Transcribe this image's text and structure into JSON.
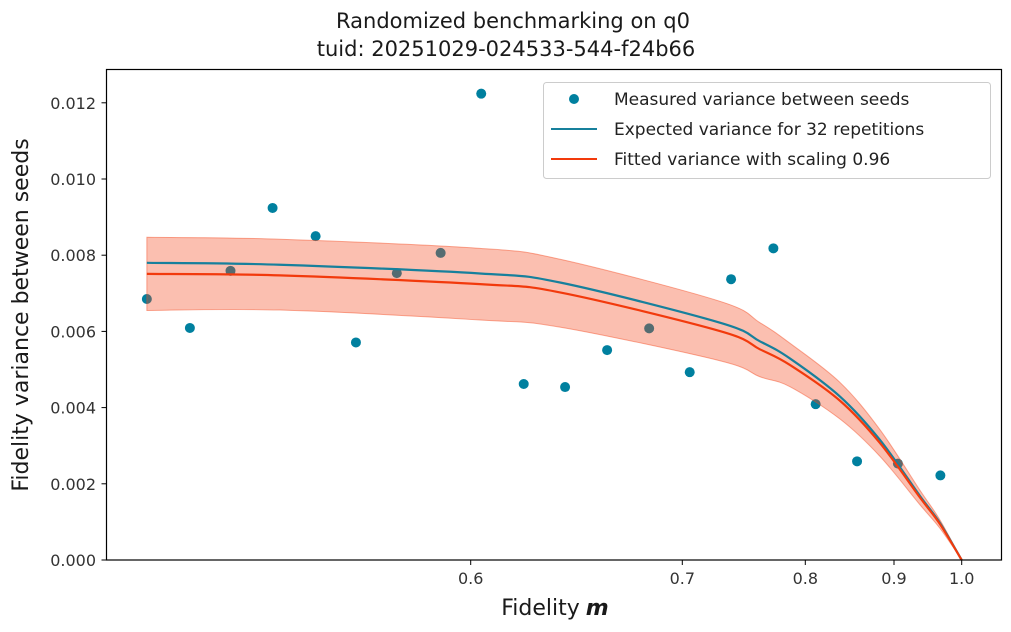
{
  "chart_data": {
    "type": "scatter",
    "title": "Randomized benchmarking on q0",
    "subtitle": "tuid: 20251029-024533-544-f24b66",
    "xlabel": "Fidelity",
    "xlabel_math": "m",
    "ylabel": "Fidelity variance between seeds",
    "xlim": [
      0.494,
      1.08
    ],
    "ylim": [
      0.0,
      0.0128
    ],
    "x_scale": "nonlinear (compressed toward 1.0)",
    "xticks": [
      {
        "value": 0.6,
        "label": "0.6"
      },
      {
        "value": 0.7,
        "label": "0.7"
      },
      {
        "value": 0.8,
        "label": "0.8"
      },
      {
        "value": 0.9,
        "label": "0.9"
      },
      {
        "value": 1.0,
        "label": "1.0"
      }
    ],
    "yticks": [
      {
        "value": 0.0,
        "label": "0.000"
      },
      {
        "value": 0.002,
        "label": "0.002"
      },
      {
        "value": 0.004,
        "label": "0.004"
      },
      {
        "value": 0.006,
        "label": "0.006"
      },
      {
        "value": 0.008,
        "label": "0.008"
      },
      {
        "value": 0.01,
        "label": "0.010"
      },
      {
        "value": 0.012,
        "label": "0.012"
      }
    ],
    "grid": false,
    "legend_position": "top-right",
    "legend": [
      {
        "label": "Measured variance between seeds",
        "kind": "marker",
        "color": "#00809f"
      },
      {
        "label": "Expected variance for 32 repetitions",
        "kind": "line",
        "color": "#17809c"
      },
      {
        "label": "Fitted variance with scaling 0.96",
        "kind": "line",
        "color": "#f23a0c"
      }
    ],
    "series": [
      {
        "name": "Measured variance between seeds",
        "type": "scatter",
        "color": "#00809f",
        "x": [
          0.506,
          0.516,
          0.526,
          0.537,
          0.549,
          0.561,
          0.574,
          0.589,
          0.604,
          0.621,
          0.639,
          0.659,
          0.681,
          0.705,
          0.735,
          0.77,
          0.81,
          0.854,
          0.905,
          0.965
        ],
        "y": [
          0.00685,
          0.00609,
          0.00759,
          0.00924,
          0.0085,
          0.00571,
          0.00753,
          0.00806,
          0.01224,
          0.00462,
          0.00454,
          0.00551,
          0.00608,
          0.00493,
          0.00737,
          0.00818,
          0.00409,
          0.00259,
          0.00253,
          0.00222
        ]
      },
      {
        "name": "Expected variance for 32 repetitions",
        "type": "line",
        "color": "#17809c",
        "x": [
          0.506,
          0.539,
          0.6035,
          0.637,
          0.7265,
          0.7583,
          0.7851,
          0.835,
          0.8817,
          0.9347,
          0.9644,
          1.0
        ],
        "y": [
          0.0078,
          0.00775,
          0.00752,
          0.00728,
          0.00623,
          0.00574,
          0.00529,
          0.00429,
          0.00315,
          0.00168,
          0.00097,
          0.0
        ]
      },
      {
        "name": "Fitted variance with scaling 0.96",
        "type": "line",
        "color": "#f23a0c",
        "x": [
          0.506,
          0.539,
          0.6035,
          0.637,
          0.7265,
          0.7583,
          0.7851,
          0.835,
          0.8817,
          0.9347,
          0.9644,
          1.0
        ],
        "y": [
          0.00751,
          0.00747,
          0.00724,
          0.00702,
          0.00601,
          0.00553,
          0.00512,
          0.00418,
          0.00307,
          0.00164,
          0.00094,
          0.0
        ],
        "band": {
          "color": "#f4481d",
          "lower": [
            0.00655,
            0.00656,
            0.0063,
            0.00611,
            0.00523,
            0.00481,
            0.00455,
            0.0037,
            0.00272,
            0.00145,
            0.00083,
            0.0
          ],
          "upper": [
            0.00847,
            0.00842,
            0.00818,
            0.00789,
            0.00679,
            0.00623,
            0.00569,
            0.00466,
            0.00342,
            0.00183,
            0.00105,
            0.0
          ]
        }
      }
    ]
  }
}
